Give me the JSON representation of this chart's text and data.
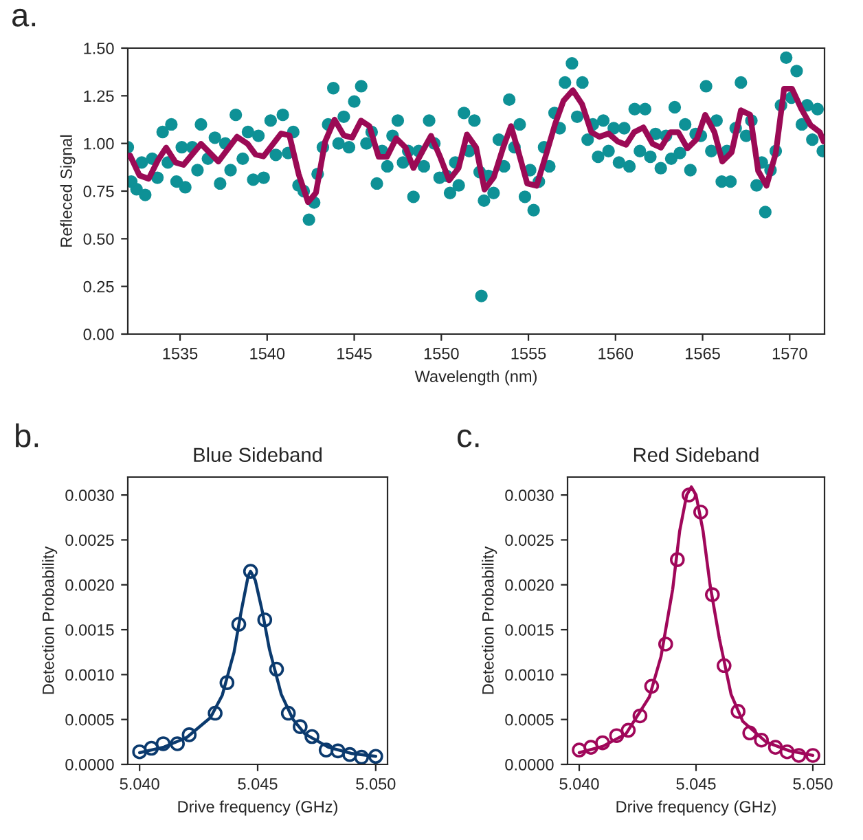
{
  "chart_data": [
    {
      "type": "scatter",
      "xlabel": "Wavelength (nm)",
      "ylabel": "Refleced Signal",
      "annotations": [
        "a."
      ],
      "xlim": [
        1532,
        1572
      ],
      "xticks": [
        1535,
        1540,
        1545,
        1550,
        1555,
        1560,
        1565,
        1570
      ],
      "ylim": [
        0,
        1.5
      ],
      "yticks": [
        {
          "value": 0,
          "label": "0.00"
        },
        {
          "value": 0.25,
          "label": "0.25"
        },
        {
          "value": 0.5,
          "label": "0.50"
        },
        {
          "value": 0.75,
          "label": "0.75"
        },
        {
          "value": 1.0,
          "label": "1.00"
        },
        {
          "value": 1.25,
          "label": "1.25"
        },
        {
          "value": 1.5,
          "label": "1.50"
        }
      ],
      "grid": false,
      "legend": false,
      "series": [
        {
          "color": "#0e9196",
          "marker": "circle",
          "x": [
            1532.0,
            1532.2,
            1532.5,
            1532.8,
            1533.0,
            1533.4,
            1533.7,
            1534.0,
            1534.3,
            1534.5,
            1534.8,
            1535.1,
            1535.3,
            1535.7,
            1536.0,
            1536.2,
            1536.6,
            1537.0,
            1537.3,
            1537.6,
            1537.9,
            1538.2,
            1538.6,
            1538.9,
            1539.2,
            1539.5,
            1539.8,
            1540.2,
            1540.5,
            1540.9,
            1541.2,
            1541.5,
            1541.8,
            1542.1,
            1542.4,
            1542.7,
            1542.9,
            1543.2,
            1543.5,
            1543.8,
            1544.1,
            1544.4,
            1544.7,
            1545.0,
            1545.4,
            1545.7,
            1546.0,
            1546.3,
            1546.6,
            1546.9,
            1547.2,
            1547.5,
            1547.8,
            1548.1,
            1548.4,
            1548.7,
            1549.0,
            1549.3,
            1549.6,
            1549.9,
            1550.3,
            1550.5,
            1550.8,
            1551.0,
            1551.3,
            1551.6,
            1551.9,
            1552.2,
            1552.3,
            1552.45,
            1552.7,
            1553.0,
            1553.3,
            1553.6,
            1553.9,
            1554.2,
            1554.5,
            1554.8,
            1555.1,
            1555.3,
            1555.6,
            1555.9,
            1556.2,
            1556.5,
            1556.8,
            1557.1,
            1557.5,
            1557.8,
            1558.1,
            1558.4,
            1558.7,
            1559.0,
            1559.3,
            1559.6,
            1559.9,
            1560.2,
            1560.5,
            1560.8,
            1561.1,
            1561.4,
            1561.7,
            1562.0,
            1562.3,
            1562.6,
            1562.9,
            1563.2,
            1563.4,
            1563.7,
            1564.0,
            1564.3,
            1564.6,
            1564.9,
            1565.2,
            1565.5,
            1565.8,
            1566.1,
            1566.4,
            1566.6,
            1566.9,
            1567.2,
            1567.5,
            1567.8,
            1568.1,
            1568.4,
            1568.6,
            1568.9,
            1569.2,
            1569.5,
            1569.8,
            1570.1,
            1570.4,
            1570.7,
            1571.0,
            1571.3,
            1571.6,
            1571.9
          ],
          "values": [
            0.98,
            0.8,
            0.76,
            0.9,
            0.73,
            0.92,
            0.82,
            1.06,
            0.9,
            1.1,
            0.8,
            0.98,
            0.77,
            0.98,
            0.86,
            1.1,
            0.92,
            1.03,
            0.79,
            1.0,
            0.86,
            1.15,
            0.92,
            1.06,
            0.81,
            1.04,
            0.82,
            1.12,
            0.94,
            1.15,
            0.95,
            1.06,
            0.78,
            0.75,
            0.6,
            0.69,
            0.84,
            0.98,
            1.1,
            1.29,
            1.0,
            1.14,
            0.98,
            1.22,
            1.3,
            1.0,
            1.06,
            0.79,
            0.96,
            0.88,
            1.04,
            1.12,
            0.9,
            0.96,
            0.72,
            0.96,
            0.88,
            1.12,
            1.0,
            0.82,
            0.83,
            0.74,
            0.9,
            0.78,
            1.16,
            0.96,
            1.12,
            0.85,
            0.2,
            0.7,
            0.83,
            0.74,
            1.02,
            0.88,
            1.23,
            0.98,
            1.1,
            0.72,
            0.86,
            0.65,
            0.8,
            0.98,
            0.88,
            1.16,
            1.08,
            1.32,
            1.42,
            1.14,
            1.32,
            1.02,
            1.1,
            0.93,
            1.12,
            0.96,
            1.08,
            0.9,
            1.08,
            0.88,
            1.18,
            0.96,
            1.18,
            0.93,
            1.05,
            0.87,
            1.04,
            0.92,
            1.19,
            0.95,
            1.1,
            0.86,
            1.05,
            1.04,
            1.3,
            0.96,
            1.12,
            0.8,
            0.96,
            0.8,
            1.08,
            1.32,
            1.04,
            1.12,
            0.78,
            0.9,
            0.64,
            0.86,
            0.96,
            1.2,
            1.45,
            1.24,
            1.38,
            1.1,
            1.2,
            1.02,
            1.18,
            0.96
          ]
        },
        {
          "type": "line",
          "color": "#9b0a55",
          "marker": "none",
          "line_style": "solid",
          "x": [
            1532.13,
            1532.67,
            1533.2,
            1533.73,
            1534.2,
            1534.75,
            1535.2,
            1536.2,
            1537.2,
            1538.27,
            1538.88,
            1539.33,
            1539.79,
            1540.8,
            1541.28,
            1541.81,
            1542.35,
            1542.8,
            1543.33,
            1543.87,
            1544.4,
            1544.88,
            1545.39,
            1545.87,
            1546.4,
            1546.88,
            1547.41,
            1547.95,
            1548.4,
            1548.93,
            1549.41,
            1549.95,
            1550.45,
            1550.99,
            1551.47,
            1552.0,
            1552.48,
            1553.01,
            1553.55,
            1554.0,
            1554.45,
            1554.93,
            1555.47,
            1556.0,
            1556.53,
            1557.01,
            1557.55,
            1558.08,
            1558.61,
            1559.07,
            1559.6,
            1560.13,
            1560.61,
            1561.07,
            1561.6,
            1562.13,
            1562.61,
            1563.15,
            1563.6,
            1564.13,
            1564.67,
            1565.15,
            1565.68,
            1566.13,
            1566.67,
            1567.2,
            1567.73,
            1568.19,
            1568.67,
            1569.2,
            1569.68,
            1570.13,
            1570.67,
            1571.2,
            1571.73,
            1571.95
          ],
          "values": [
            0.937,
            0.832,
            0.815,
            0.912,
            0.978,
            0.9,
            0.888,
            0.998,
            0.905,
            1.035,
            0.998,
            0.942,
            0.932,
            1.052,
            1.042,
            0.839,
            0.692,
            0.741,
            1.01,
            1.125,
            1.042,
            1.03,
            1.12,
            1.091,
            0.93,
            0.93,
            1.027,
            0.978,
            0.871,
            0.961,
            1.04,
            0.925,
            0.807,
            0.871,
            1.047,
            0.978,
            0.758,
            0.822,
            0.978,
            1.091,
            0.949,
            0.79,
            0.778,
            0.937,
            1.101,
            1.223,
            1.279,
            1.206,
            1.059,
            1.035,
            1.052,
            1.01,
            0.993,
            1.059,
            1.084,
            0.998,
            0.978,
            1.059,
            1.059,
            0.974,
            1.023,
            1.15,
            1.059,
            0.905,
            0.954,
            1.174,
            1.15,
            0.856,
            0.778,
            0.949,
            1.287,
            1.287,
            1.181,
            1.096,
            1.059,
            1.01
          ]
        }
      ]
    },
    {
      "type": "scatter",
      "title": "Blue Sideband",
      "xlabel": "Drive frequency (GHz)",
      "ylabel": "Detection Probability",
      "annotations": [
        "b."
      ],
      "xlim": [
        5.0395,
        5.0505
      ],
      "xticks": [
        {
          "value": 5.04,
          "label": "5.040"
        },
        {
          "value": 5.045,
          "label": "5.045"
        },
        {
          "value": 5.05,
          "label": "5.050"
        }
      ],
      "ylim": [
        0,
        0.0032
      ],
      "yticks": [
        {
          "value": 0,
          "label": "0.0000"
        },
        {
          "value": 0.0005,
          "label": "0.0005"
        },
        {
          "value": 0.001,
          "label": "0.0010"
        },
        {
          "value": 0.0015,
          "label": "0.0015"
        },
        {
          "value": 0.002,
          "label": "0.0020"
        },
        {
          "value": 0.0025,
          "label": "0.0025"
        },
        {
          "value": 0.003,
          "label": "0.0030"
        }
      ],
      "grid": false,
      "legend": false,
      "series": [
        {
          "color": "#0b3a6e",
          "marker": "circle",
          "x": [
            5.04,
            5.0405,
            5.041,
            5.0416,
            5.0421,
            5.0432,
            5.0437,
            5.0442,
            5.0447,
            5.0453,
            5.0458,
            5.0463,
            5.0468,
            5.0473,
            5.0479,
            5.0484,
            5.0489,
            5.0494,
            5.05
          ],
          "values": [
            0.00014,
            0.00018,
            0.00023,
            0.00023,
            0.00033,
            0.00057,
            0.00091,
            0.00156,
            0.00215,
            0.00161,
            0.00106,
            0.00057,
            0.00042,
            0.00031,
            0.00016,
            0.00015,
            0.00011,
            8e-05,
            9e-05
          ]
        },
        {
          "type": "line",
          "color": "#0b3a6e",
          "marker": "none",
          "line_style": "solid",
          "x": [
            5.04,
            5.041,
            5.042,
            5.043,
            5.0435,
            5.044,
            5.0443,
            5.0446,
            5.0447,
            5.0449,
            5.0452,
            5.0455,
            5.046,
            5.0465,
            5.047,
            5.048,
            5.049,
            5.05
          ],
          "values": [
            0.00013,
            0.00019,
            0.0003,
            0.00052,
            0.00077,
            0.00125,
            0.0017,
            0.0021,
            0.00215,
            0.00205,
            0.0017,
            0.00128,
            0.00078,
            0.0005,
            0.00034,
            0.00019,
            0.00012,
            9e-05
          ]
        }
      ]
    },
    {
      "type": "scatter",
      "title": "Red Sideband",
      "xlabel": "Drive frequency (GHz)",
      "ylabel": "Detection Probability",
      "annotations": [
        "c."
      ],
      "xlim": [
        5.0395,
        5.0505
      ],
      "xticks": [
        {
          "value": 5.04,
          "label": "5.040"
        },
        {
          "value": 5.045,
          "label": "5.045"
        },
        {
          "value": 5.05,
          "label": "5.050"
        }
      ],
      "ylim": [
        0,
        0.0032
      ],
      "yticks": [
        {
          "value": 0,
          "label": "0.0000"
        },
        {
          "value": 0.0005,
          "label": "0.0005"
        },
        {
          "value": 0.001,
          "label": "0.0010"
        },
        {
          "value": 0.0015,
          "label": "0.0015"
        },
        {
          "value": 0.002,
          "label": "0.0020"
        },
        {
          "value": 0.0025,
          "label": "0.0025"
        },
        {
          "value": 0.003,
          "label": "0.0030"
        }
      ],
      "grid": false,
      "legend": false,
      "series": [
        {
          "color": "#a0075a",
          "marker": "circle",
          "x": [
            5.04,
            5.0405,
            5.041,
            5.0416,
            5.0421,
            5.0426,
            5.0431,
            5.0437,
            5.0442,
            5.0447,
            5.0452,
            5.0457,
            5.0462,
            5.0468,
            5.0473,
            5.0478,
            5.0484,
            5.0489,
            5.0494,
            5.05
          ],
          "values": [
            0.00016,
            0.00019,
            0.00024,
            0.00032,
            0.00038,
            0.00054,
            0.00087,
            0.00134,
            0.00228,
            0.003,
            0.00281,
            0.00189,
            0.0011,
            0.00059,
            0.00035,
            0.00027,
            0.00019,
            0.00014,
            0.0001,
            0.0001
          ]
        },
        {
          "type": "line",
          "color": "#a0075a",
          "marker": "none",
          "line_style": "solid",
          "x": [
            5.04,
            5.041,
            5.042,
            5.043,
            5.0435,
            5.044,
            5.0443,
            5.0446,
            5.0448,
            5.045,
            5.0453,
            5.0456,
            5.046,
            5.0465,
            5.047,
            5.048,
            5.049,
            5.05
          ],
          "values": [
            0.00013,
            0.0002,
            0.00034,
            0.00075,
            0.0012,
            0.00195,
            0.0026,
            0.003,
            0.00309,
            0.003,
            0.0026,
            0.002,
            0.0014,
            0.00078,
            0.00048,
            0.00025,
            0.00015,
            0.0001
          ]
        }
      ]
    }
  ]
}
